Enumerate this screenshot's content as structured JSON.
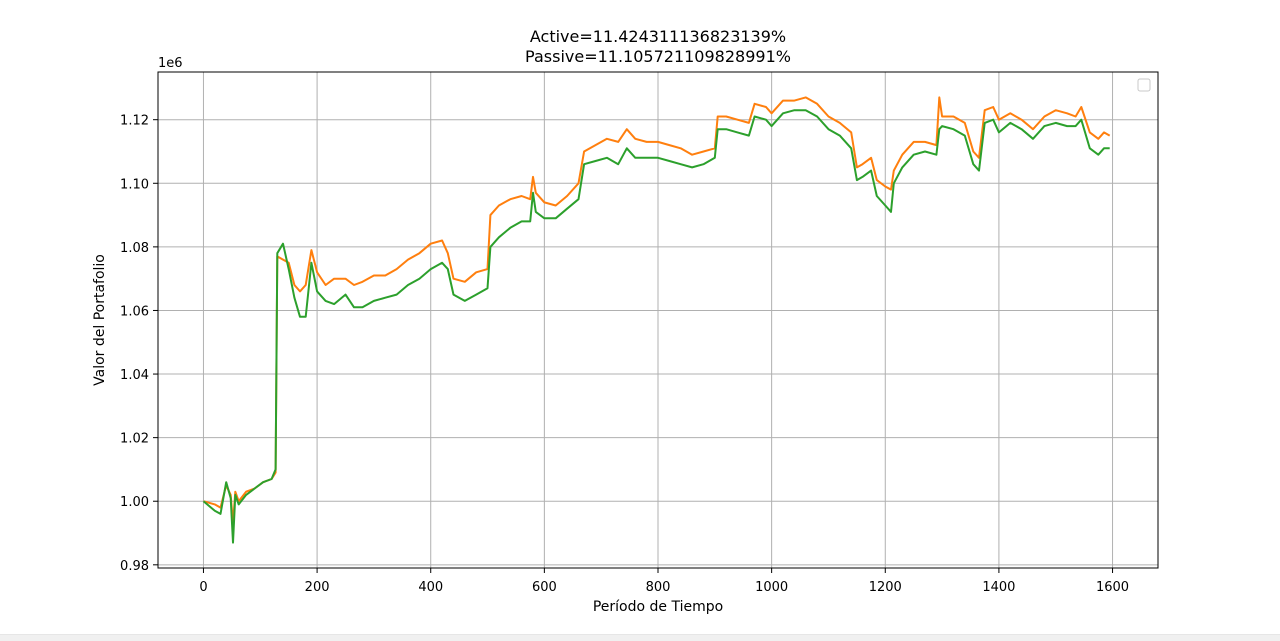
{
  "chart_data": {
    "type": "line",
    "title_lines": [
      "Active=11.424311136823139%",
      "Passive=11.105721109828991%"
    ],
    "xlabel": "Período de Tiempo",
    "ylabel": "Valor del Portafolio",
    "y_offset_text": "1e6",
    "xlim": [
      -80,
      1680
    ],
    "ylim": [
      979000,
      1135000
    ],
    "x_ticks": [
      0,
      200,
      400,
      600,
      800,
      1000,
      1200,
      1400,
      1600
    ],
    "x_tick_labels": [
      "0",
      "200",
      "400",
      "600",
      "800",
      "1000",
      "1200",
      "1400",
      "1600"
    ],
    "y_ticks": [
      980000,
      1000000,
      1020000,
      1040000,
      1060000,
      1080000,
      1100000,
      1120000
    ],
    "y_tick_labels": [
      "0.98",
      "1.00",
      "1.02",
      "1.04",
      "1.06",
      "1.08",
      "1.10",
      "1.12"
    ],
    "grid": true,
    "legend": "top-right, empty",
    "series": [
      {
        "color": "#ff7f0e",
        "points": [
          [
            0,
            1000000
          ],
          [
            20,
            999000
          ],
          [
            30,
            998000
          ],
          [
            40,
            1005000
          ],
          [
            48,
            1002000
          ],
          [
            52,
            993000
          ],
          [
            56,
            1003000
          ],
          [
            62,
            1000000
          ],
          [
            75,
            1003000
          ],
          [
            90,
            1004000
          ],
          [
            105,
            1006000
          ],
          [
            120,
            1007000
          ],
          [
            127,
            1009000
          ],
          [
            130,
            1077000
          ],
          [
            140,
            1076000
          ],
          [
            150,
            1075000
          ],
          [
            160,
            1068000
          ],
          [
            170,
            1066000
          ],
          [
            180,
            1068000
          ],
          [
            190,
            1079000
          ],
          [
            200,
            1072000
          ],
          [
            215,
            1068000
          ],
          [
            230,
            1070000
          ],
          [
            250,
            1070000
          ],
          [
            265,
            1068000
          ],
          [
            280,
            1069000
          ],
          [
            300,
            1071000
          ],
          [
            320,
            1071000
          ],
          [
            340,
            1073000
          ],
          [
            360,
            1076000
          ],
          [
            380,
            1078000
          ],
          [
            400,
            1081000
          ],
          [
            420,
            1082000
          ],
          [
            430,
            1078000
          ],
          [
            440,
            1070000
          ],
          [
            460,
            1069000
          ],
          [
            480,
            1072000
          ],
          [
            500,
            1073000
          ],
          [
            505,
            1090000
          ],
          [
            520,
            1093000
          ],
          [
            540,
            1095000
          ],
          [
            560,
            1096000
          ],
          [
            575,
            1095000
          ],
          [
            580,
            1102000
          ],
          [
            585,
            1097000
          ],
          [
            600,
            1094000
          ],
          [
            620,
            1093000
          ],
          [
            640,
            1096000
          ],
          [
            660,
            1100000
          ],
          [
            670,
            1110000
          ],
          [
            690,
            1112000
          ],
          [
            710,
            1114000
          ],
          [
            730,
            1113000
          ],
          [
            745,
            1117000
          ],
          [
            760,
            1114000
          ],
          [
            780,
            1113000
          ],
          [
            800,
            1113000
          ],
          [
            820,
            1112000
          ],
          [
            840,
            1111000
          ],
          [
            860,
            1109000
          ],
          [
            880,
            1110000
          ],
          [
            900,
            1111000
          ],
          [
            905,
            1121000
          ],
          [
            920,
            1121000
          ],
          [
            940,
            1120000
          ],
          [
            960,
            1119000
          ],
          [
            970,
            1125000
          ],
          [
            990,
            1124000
          ],
          [
            1000,
            1122000
          ],
          [
            1020,
            1126000
          ],
          [
            1040,
            1126000
          ],
          [
            1060,
            1127000
          ],
          [
            1080,
            1125000
          ],
          [
            1100,
            1121000
          ],
          [
            1120,
            1119000
          ],
          [
            1140,
            1116000
          ],
          [
            1150,
            1105000
          ],
          [
            1160,
            1106000
          ],
          [
            1175,
            1108000
          ],
          [
            1185,
            1101000
          ],
          [
            1200,
            1099000
          ],
          [
            1210,
            1098000
          ],
          [
            1215,
            1104000
          ],
          [
            1230,
            1109000
          ],
          [
            1250,
            1113000
          ],
          [
            1270,
            1113000
          ],
          [
            1290,
            1112000
          ],
          [
            1295,
            1127000
          ],
          [
            1300,
            1121000
          ],
          [
            1320,
            1121000
          ],
          [
            1340,
            1119000
          ],
          [
            1355,
            1110000
          ],
          [
            1365,
            1108000
          ],
          [
            1375,
            1123000
          ],
          [
            1390,
            1124000
          ],
          [
            1400,
            1120000
          ],
          [
            1420,
            1122000
          ],
          [
            1440,
            1120000
          ],
          [
            1460,
            1117000
          ],
          [
            1480,
            1121000
          ],
          [
            1500,
            1123000
          ],
          [
            1520,
            1122000
          ],
          [
            1535,
            1121000
          ],
          [
            1545,
            1124000
          ],
          [
            1560,
            1116000
          ],
          [
            1575,
            1114000
          ],
          [
            1585,
            1116000
          ],
          [
            1595,
            1115000
          ]
        ]
      },
      {
        "color": "#2ca02c",
        "points": [
          [
            0,
            1000000
          ],
          [
            20,
            997000
          ],
          [
            30,
            996000
          ],
          [
            40,
            1006000
          ],
          [
            48,
            1001000
          ],
          [
            52,
            987000
          ],
          [
            56,
            1002000
          ],
          [
            62,
            999000
          ],
          [
            75,
            1002000
          ],
          [
            90,
            1004000
          ],
          [
            105,
            1006000
          ],
          [
            120,
            1007000
          ],
          [
            127,
            1010000
          ],
          [
            130,
            1078000
          ],
          [
            140,
            1081000
          ],
          [
            150,
            1073000
          ],
          [
            160,
            1064000
          ],
          [
            170,
            1058000
          ],
          [
            180,
            1058000
          ],
          [
            190,
            1075000
          ],
          [
            200,
            1066000
          ],
          [
            215,
            1063000
          ],
          [
            230,
            1062000
          ],
          [
            250,
            1065000
          ],
          [
            265,
            1061000
          ],
          [
            280,
            1061000
          ],
          [
            300,
            1063000
          ],
          [
            320,
            1064000
          ],
          [
            340,
            1065000
          ],
          [
            360,
            1068000
          ],
          [
            380,
            1070000
          ],
          [
            400,
            1073000
          ],
          [
            420,
            1075000
          ],
          [
            430,
            1073000
          ],
          [
            440,
            1065000
          ],
          [
            460,
            1063000
          ],
          [
            480,
            1065000
          ],
          [
            500,
            1067000
          ],
          [
            505,
            1080000
          ],
          [
            520,
            1083000
          ],
          [
            540,
            1086000
          ],
          [
            560,
            1088000
          ],
          [
            575,
            1088000
          ],
          [
            580,
            1097000
          ],
          [
            585,
            1091000
          ],
          [
            600,
            1089000
          ],
          [
            620,
            1089000
          ],
          [
            640,
            1092000
          ],
          [
            660,
            1095000
          ],
          [
            670,
            1106000
          ],
          [
            690,
            1107000
          ],
          [
            710,
            1108000
          ],
          [
            730,
            1106000
          ],
          [
            745,
            1111000
          ],
          [
            760,
            1108000
          ],
          [
            780,
            1108000
          ],
          [
            800,
            1108000
          ],
          [
            820,
            1107000
          ],
          [
            840,
            1106000
          ],
          [
            860,
            1105000
          ],
          [
            880,
            1106000
          ],
          [
            900,
            1108000
          ],
          [
            905,
            1117000
          ],
          [
            920,
            1117000
          ],
          [
            940,
            1116000
          ],
          [
            960,
            1115000
          ],
          [
            970,
            1121000
          ],
          [
            990,
            1120000
          ],
          [
            1000,
            1118000
          ],
          [
            1020,
            1122000
          ],
          [
            1040,
            1123000
          ],
          [
            1060,
            1123000
          ],
          [
            1080,
            1121000
          ],
          [
            1100,
            1117000
          ],
          [
            1120,
            1115000
          ],
          [
            1140,
            1111000
          ],
          [
            1150,
            1101000
          ],
          [
            1160,
            1102000
          ],
          [
            1175,
            1104000
          ],
          [
            1185,
            1096000
          ],
          [
            1200,
            1093000
          ],
          [
            1210,
            1091000
          ],
          [
            1215,
            1100000
          ],
          [
            1230,
            1105000
          ],
          [
            1250,
            1109000
          ],
          [
            1270,
            1110000
          ],
          [
            1290,
            1109000
          ],
          [
            1295,
            1117000
          ],
          [
            1300,
            1118000
          ],
          [
            1320,
            1117000
          ],
          [
            1340,
            1115000
          ],
          [
            1355,
            1106000
          ],
          [
            1365,
            1104000
          ],
          [
            1375,
            1119000
          ],
          [
            1390,
            1120000
          ],
          [
            1400,
            1116000
          ],
          [
            1420,
            1119000
          ],
          [
            1440,
            1117000
          ],
          [
            1460,
            1114000
          ],
          [
            1480,
            1118000
          ],
          [
            1500,
            1119000
          ],
          [
            1520,
            1118000
          ],
          [
            1535,
            1118000
          ],
          [
            1545,
            1120000
          ],
          [
            1560,
            1111000
          ],
          [
            1575,
            1109000
          ],
          [
            1585,
            1111000
          ],
          [
            1595,
            1111000
          ]
        ]
      }
    ]
  }
}
